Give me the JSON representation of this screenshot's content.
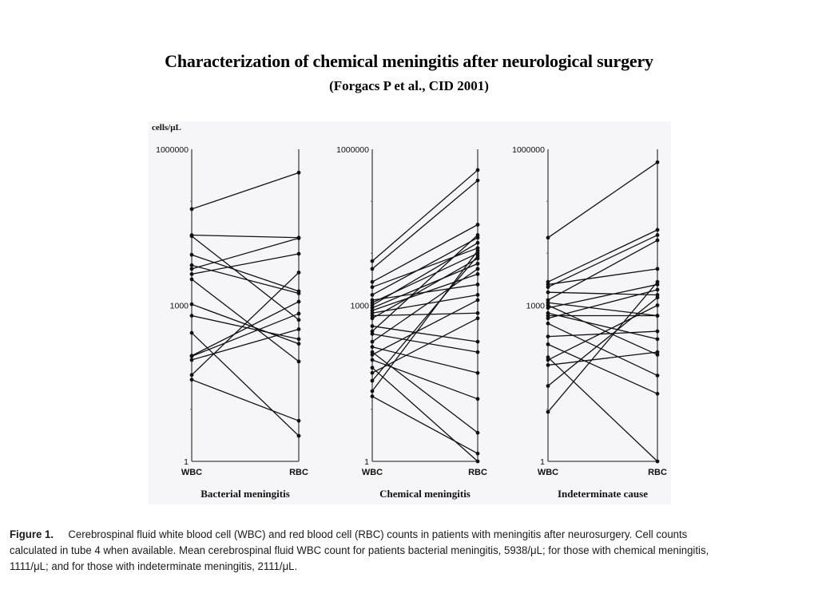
{
  "header": {
    "title": "Characterization of chemical meningitis after neurological surgery",
    "subtitle": "(Forgacs P et al., CID 2001)"
  },
  "chart_data": [
    {
      "type": "line",
      "subtype": "paired-slope (log scale)",
      "title": "Bacterial meningitis",
      "ylabel": "cells/μL",
      "yscale": "log",
      "ylim": [
        1,
        1000000
      ],
      "yticks": [
        "1000000",
        "1000",
        "1"
      ],
      "categories": [
        "WBC",
        "RBC"
      ],
      "series_values_log10": [
        [
          4.85,
          5.55
        ],
        [
          4.35,
          4.3
        ],
        [
          4.33,
          2.72
        ],
        [
          3.97,
          3.27
        ],
        [
          3.77,
          3.23
        ],
        [
          3.7,
          4.29
        ],
        [
          3.6,
          3.99
        ],
        [
          3.5,
          1.92
        ],
        [
          3.02,
          2.26
        ],
        [
          2.8,
          2.35
        ],
        [
          2.03,
          3.07
        ],
        [
          2.02,
          2.84
        ],
        [
          1.66,
          3.63
        ],
        [
          1.57,
          0.78
        ],
        [
          1.95,
          2.54
        ],
        [
          2.47,
          0.49
        ]
      ]
    },
    {
      "type": "line",
      "subtype": "paired-slope (log scale)",
      "title": "Chemical meningitis",
      "yscale": "log",
      "ylim": [
        1,
        1000000
      ],
      "yticks": [
        "1000000",
        "1000",
        "1"
      ],
      "categories": [
        "WBC",
        "RBC"
      ],
      "series_values_log10": [
        [
          3.85,
          5.6
        ],
        [
          3.7,
          5.4
        ],
        [
          3.45,
          4.55
        ],
        [
          3.35,
          4.1
        ],
        [
          3.2,
          4.3
        ],
        [
          3.1,
          3.4
        ],
        [
          3.05,
          4.0
        ],
        [
          2.95,
          3.8
        ],
        [
          3.0,
          4.2
        ],
        [
          2.9,
          3.6
        ],
        [
          2.85,
          3.2
        ],
        [
          2.8,
          2.85
        ],
        [
          2.75,
          3.9
        ],
        [
          2.6,
          2.3
        ],
        [
          2.5,
          4.35
        ],
        [
          2.3,
          3.7
        ],
        [
          2.2,
          1.7
        ],
        [
          2.1,
          0.55
        ],
        [
          2.05,
          3.1
        ],
        [
          1.95,
          1.2
        ],
        [
          1.8,
          0.0
        ],
        [
          1.7,
          2.75
        ],
        [
          1.55,
          3.95
        ],
        [
          1.35,
          4.05
        ],
        [
          1.25,
          0.15
        ],
        [
          2.45,
          2.1
        ]
      ]
    },
    {
      "type": "line",
      "subtype": "paired-slope (log scale)",
      "title": "Indeterminate cause",
      "yscale": "log",
      "ylim": [
        1,
        1000000
      ],
      "yticks": [
        "1000000",
        "1000",
        "1"
      ],
      "categories": [
        "WBC",
        "RBC"
      ],
      "series_values_log10": [
        [
          4.3,
          5.75
        ],
        [
          3.45,
          4.45
        ],
        [
          3.4,
          3.7
        ],
        [
          3.35,
          4.35
        ],
        [
          3.25,
          3.2
        ],
        [
          3.1,
          4.25
        ],
        [
          3.05,
          2.8
        ],
        [
          2.95,
          3.4
        ],
        [
          2.85,
          2.35
        ],
        [
          2.8,
          2.8
        ],
        [
          2.75,
          3.3
        ],
        [
          2.65,
          1.65
        ],
        [
          2.4,
          2.5
        ],
        [
          2.25,
          1.3
        ],
        [
          2.0,
          0.0
        ],
        [
          1.95,
          3.0
        ],
        [
          1.85,
          2.1
        ],
        [
          1.45,
          3.15
        ],
        [
          0.95,
          3.45
        ],
        [
          3.0,
          2.05
        ]
      ]
    }
  ],
  "figure": {
    "ylabel": "cells/μL",
    "panel_titles": [
      "Bacterial meningitis",
      "Chemical meningitis",
      "Indeterminate cause"
    ],
    "xlabels": [
      "WBC",
      "RBC"
    ],
    "ytick_labels": [
      "1000000",
      "1000",
      "1"
    ]
  },
  "caption": {
    "label": "Figure 1.",
    "line1_rest": "Cerebrospinal fluid white blood cell (WBC) and red blood cell (RBC) counts in patients with meningitis after neurosurgery. Cell counts",
    "line2": "calculated in tube 4 when available. Mean cerebrospinal fluid WBC count for patients bacterial meningitis, 5938/μL; for those with chemical meningitis,",
    "line3": "1111/μL; and for those with indeterminate meningitis, 2111/μL."
  }
}
